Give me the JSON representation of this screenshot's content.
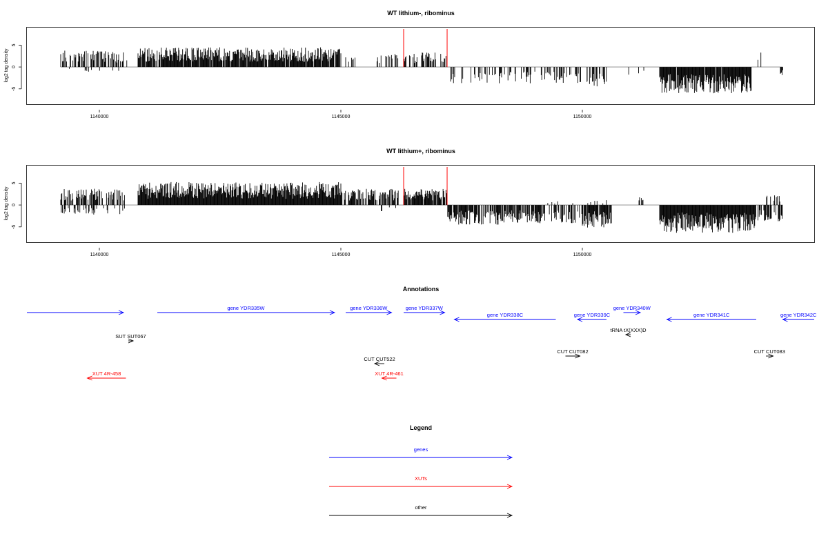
{
  "colors": {
    "gene": "#0000ff",
    "xut": "#ff0000",
    "other": "#000000",
    "marker": "#ff0000",
    "bar": "#000000",
    "baseline": "#808080"
  },
  "chart_data": [
    {
      "type": "bar",
      "title": "WT lithium-, ribominus",
      "ylabel": "log2 tag density",
      "xlim": [
        1138500,
        1154800
      ],
      "ylim": [
        -8.5,
        9
      ],
      "xticks": [
        1140000,
        1145000,
        1150000
      ],
      "xtick_labels": [
        "1140000",
        "1145000",
        "1150000"
      ],
      "yticks": [
        -5,
        0,
        5
      ],
      "ytick_labels": [
        "-5",
        "0",
        "5"
      ],
      "data_x_range": [
        1139200,
        1154150
      ],
      "red_markers": [
        1146300,
        1147200
      ],
      "plus_strand_segments": [
        {
          "start": 1139200,
          "end": 1140600,
          "mean": 2.5,
          "density": 0.5
        },
        {
          "start": 1140800,
          "end": 1145000,
          "mean": 3.0,
          "density": 0.9
        },
        {
          "start": 1145100,
          "end": 1145300,
          "mean": 1.5,
          "density": 0.2
        },
        {
          "start": 1145700,
          "end": 1146200,
          "mean": 2.0,
          "density": 0.4
        },
        {
          "start": 1146300,
          "end": 1147200,
          "mean": 2.2,
          "density": 0.5
        },
        {
          "start": 1153600,
          "end": 1153700,
          "mean": 2.5,
          "density": 0.3
        }
      ],
      "minus_strand_segments": [
        {
          "start": 1139200,
          "end": 1140600,
          "mean": 0.8,
          "density": 0.06
        },
        {
          "start": 1145500,
          "end": 1146200,
          "mean": 1.0,
          "density": 0.06
        },
        {
          "start": 1147200,
          "end": 1148800,
          "mean": 2.5,
          "density": 0.35
        },
        {
          "start": 1148800,
          "end": 1150100,
          "mean": 2.5,
          "density": 0.3
        },
        {
          "start": 1150100,
          "end": 1150500,
          "mean": 3.0,
          "density": 0.6
        },
        {
          "start": 1150900,
          "end": 1151300,
          "mean": 1.5,
          "density": 0.1
        },
        {
          "start": 1151600,
          "end": 1153500,
          "mean": 4.0,
          "density": 0.98
        },
        {
          "start": 1154100,
          "end": 1154150,
          "mean": 1.5,
          "density": 1.0
        }
      ]
    },
    {
      "type": "bar",
      "title": "WT lithium+, ribominus",
      "ylabel": "log2 tag density",
      "xlim": [
        1138500,
        1154800
      ],
      "ylim": [
        -8.5,
        9
      ],
      "xticks": [
        1140000,
        1145000,
        1150000
      ],
      "xtick_labels": [
        "1140000",
        "1145000",
        "1150000"
      ],
      "yticks": [
        -5,
        0,
        5
      ],
      "ytick_labels": [
        "-5",
        "0",
        "5"
      ],
      "data_x_range": [
        1139200,
        1154150
      ],
      "red_markers": [
        1146300,
        1147200
      ],
      "plus_strand_segments": [
        {
          "start": 1139200,
          "end": 1140600,
          "mean": 2.5,
          "density": 0.6
        },
        {
          "start": 1140800,
          "end": 1145000,
          "mean": 3.5,
          "density": 1.0
        },
        {
          "start": 1145000,
          "end": 1146200,
          "mean": 2.5,
          "density": 0.7
        },
        {
          "start": 1146300,
          "end": 1147200,
          "mean": 2.5,
          "density": 0.8
        },
        {
          "start": 1149200,
          "end": 1150500,
          "mean": 0.8,
          "density": 0.1
        },
        {
          "start": 1151100,
          "end": 1151300,
          "mean": 1.2,
          "density": 0.2
        },
        {
          "start": 1153800,
          "end": 1154100,
          "mean": 1.5,
          "density": 0.4
        }
      ],
      "minus_strand_segments": [
        {
          "start": 1139200,
          "end": 1140600,
          "mean": 1.5,
          "density": 0.25
        },
        {
          "start": 1145800,
          "end": 1146200,
          "mean": 1.0,
          "density": 0.1
        },
        {
          "start": 1147200,
          "end": 1148800,
          "mean": 3.0,
          "density": 0.8
        },
        {
          "start": 1148800,
          "end": 1150000,
          "mean": 2.8,
          "density": 0.7
        },
        {
          "start": 1150000,
          "end": 1150600,
          "mean": 3.5,
          "density": 0.9
        },
        {
          "start": 1151600,
          "end": 1153600,
          "mean": 4.3,
          "density": 1.0
        },
        {
          "start": 1153600,
          "end": 1154150,
          "mean": 2.5,
          "density": 0.6
        }
      ]
    }
  ],
  "annotations": {
    "title": "Annotations",
    "items": [
      {
        "label": "",
        "type": "gene",
        "start": 1138500,
        "end": 1140500,
        "row": 1,
        "strand": "+"
      },
      {
        "label": "gene YDR335W",
        "type": "gene",
        "start": 1141200,
        "end": 1144870,
        "row": 1,
        "strand": "+"
      },
      {
        "label": "gene YDR336W",
        "type": "gene",
        "start": 1145100,
        "end": 1146050,
        "row": 1,
        "strand": "+"
      },
      {
        "label": "gene YDR337W",
        "type": "gene",
        "start": 1146300,
        "end": 1147150,
        "row": 1,
        "strand": "+"
      },
      {
        "label": "gene YDR338C",
        "type": "gene",
        "start": 1147350,
        "end": 1149450,
        "row": 2,
        "strand": "-"
      },
      {
        "label": "gene YDR339C",
        "type": "gene",
        "start": 1149900,
        "end": 1150500,
        "row": 2,
        "strand": "-"
      },
      {
        "label": "gene YDR340W",
        "type": "gene",
        "start": 1150850,
        "end": 1151200,
        "row": 1,
        "strand": "+"
      },
      {
        "label": "gene YDR341C",
        "type": "gene",
        "start": 1151750,
        "end": 1153600,
        "row": 2,
        "strand": "-"
      },
      {
        "label": "gene YDR342C",
        "type": "gene",
        "start": 1154150,
        "end": 1154800,
        "row": 2,
        "strand": "-"
      },
      {
        "label": "tRNA tX(XXX)D",
        "type": "other",
        "start": 1150900,
        "end": 1151000,
        "row": 3,
        "strand": "-"
      },
      {
        "label": "SUT SUT067",
        "type": "other",
        "start": 1140600,
        "end": 1140700,
        "row": 4,
        "strand": "+"
      },
      {
        "label": "CUT CUT082",
        "type": "other",
        "start": 1149650,
        "end": 1149950,
        "row": 5,
        "strand": "+"
      },
      {
        "label": "CUT CUT083",
        "type": "other",
        "start": 1153800,
        "end": 1153950,
        "row": 5,
        "strand": "+"
      },
      {
        "label": "CUT CUT522",
        "type": "other",
        "start": 1145700,
        "end": 1145900,
        "row": 6,
        "strand": "-"
      },
      {
        "label": "XUT 4R-458",
        "type": "xut",
        "start": 1139750,
        "end": 1140550,
        "row": 7,
        "strand": "-"
      },
      {
        "label": "XUT 4R-461",
        "type": "xut",
        "start": 1145850,
        "end": 1146150,
        "row": 7,
        "strand": "-"
      }
    ]
  },
  "legend": {
    "title": "Legend",
    "items": [
      {
        "label": "genes",
        "type": "gene"
      },
      {
        "label": "XUTs",
        "type": "xut"
      },
      {
        "label": "other",
        "type": "other"
      }
    ]
  }
}
